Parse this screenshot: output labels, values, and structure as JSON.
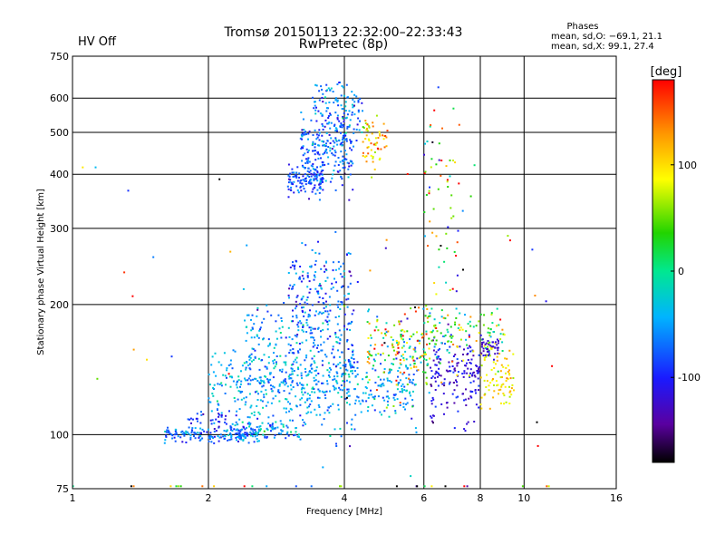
{
  "header": {
    "title_line1": "Tromsø 20150113 22:32:00–22:33:43",
    "title_line2": "RwPretec (8p)",
    "status": "HV Off",
    "status_color": "#cc0000",
    "stats_title": "Phases",
    "stats_o": "mean, sd,O: −69.1, 21.1",
    "stats_x": "mean, sd,X:  99.1, 27.4"
  },
  "chart_data": {
    "type": "scatter",
    "xlabel": "Frequency [MHz]",
    "ylabel": "Stationary phase Virtual Height [km]",
    "x_scale": "log",
    "y_scale": "log",
    "xlim": [
      1,
      16
    ],
    "ylim": [
      75,
      750
    ],
    "x_ticks": [
      {
        "value": 1,
        "label": "1"
      },
      {
        "value": 2,
        "label": "2"
      },
      {
        "value": 4,
        "label": "4"
      },
      {
        "value": 6,
        "label": "6"
      },
      {
        "value": 8,
        "label": "8"
      },
      {
        "value": 10,
        "label": "10"
      },
      {
        "value": 16,
        "label": "16"
      }
    ],
    "y_ticks": [
      {
        "value": 75,
        "label": "75"
      },
      {
        "value": 100,
        "label": "100"
      },
      {
        "value": 200,
        "label": "200"
      },
      {
        "value": 300,
        "label": "300"
      },
      {
        "value": 400,
        "label": "400"
      },
      {
        "value": 500,
        "label": "500"
      },
      {
        "value": 600,
        "label": "600"
      },
      {
        "value": 750,
        "label": "750"
      }
    ],
    "grid": true,
    "colorbar": {
      "label": "[deg]",
      "range": [
        -180,
        180
      ],
      "ticks": [
        {
          "value": 100,
          "label": "100"
        },
        {
          "value": 0,
          "label": "0"
        },
        {
          "value": -100,
          "label": "-100"
        }
      ]
    },
    "point_groups": [
      {
        "x_range": [
          1.6,
          2.6
        ],
        "height": 100,
        "height_spread": 2,
        "phase": -70,
        "phase_spread": 25,
        "count": 160
      },
      {
        "x_range": [
          2.2,
          3.2
        ],
        "height": 103,
        "height_spread": 3,
        "phase": -60,
        "phase_spread": 30,
        "count": 90
      },
      {
        "x_range": [
          1.8,
          2.2
        ],
        "height": 108,
        "height_spread": 2,
        "phase": -100,
        "phase_spread": 20,
        "count": 30
      },
      {
        "x_range": [
          2.0,
          5.8
        ],
        "height": 130,
        "height_spread": 12,
        "phase": -50,
        "phase_spread": 25,
        "count": 430
      },
      {
        "x_range": [
          2.4,
          4.2
        ],
        "height": 150,
        "height_spread": 25,
        "phase": -50,
        "phase_spread": 25,
        "count": 280
      },
      {
        "x_range": [
          3.0,
          4.2
        ],
        "height": 205,
        "height_spread": 35,
        "phase": -75,
        "phase_spread": 30,
        "count": 220
      },
      {
        "x_range": [
          4.5,
          6.2
        ],
        "height": 160,
        "height_spread": 18,
        "phase": 60,
        "phase_spread": 90,
        "count": 180
      },
      {
        "x_range": [
          6.2,
          8.0
        ],
        "height": 135,
        "height_spread": 15,
        "phase": -115,
        "phase_spread": 20,
        "count": 170
      },
      {
        "x_range": [
          6.0,
          9.0
        ],
        "height": 170,
        "height_spread": 15,
        "phase": 50,
        "phase_spread": 60,
        "count": 120
      },
      {
        "x_range": [
          8.0,
          9.5
        ],
        "height": 135,
        "height_spread": 10,
        "phase": 100,
        "phase_spread": 20,
        "count": 80
      },
      {
        "x_range": [
          8.0,
          8.8
        ],
        "height": 160,
        "height_spread": 5,
        "phase": -120,
        "phase_spread": 10,
        "count": 40
      },
      {
        "x_range": [
          3.0,
          3.6
        ],
        "height": 390,
        "height_spread": 15,
        "phase": -80,
        "phase_spread": 20,
        "count": 120
      },
      {
        "x_range": [
          3.2,
          4.2
        ],
        "height": 450,
        "height_spread": 45,
        "phase": -70,
        "phase_spread": 25,
        "count": 220
      },
      {
        "x_range": [
          3.4,
          4.4
        ],
        "height": 560,
        "height_spread": 50,
        "phase": -60,
        "phase_spread": 30,
        "count": 120
      },
      {
        "x_range": [
          4.4,
          5.0
        ],
        "height": 480,
        "height_spread": 35,
        "phase": 110,
        "phase_spread": 30,
        "count": 60
      },
      {
        "x_range": [
          6.0,
          7.2
        ],
        "height": 350,
        "height_spread": 100,
        "phase": 60,
        "phase_spread": 100,
        "count": 60
      },
      {
        "x_range": [
          1.0,
          12.5
        ],
        "height": 200,
        "height_spread": 150,
        "phase": 0,
        "phase_spread": 150,
        "count": 80
      }
    ]
  }
}
